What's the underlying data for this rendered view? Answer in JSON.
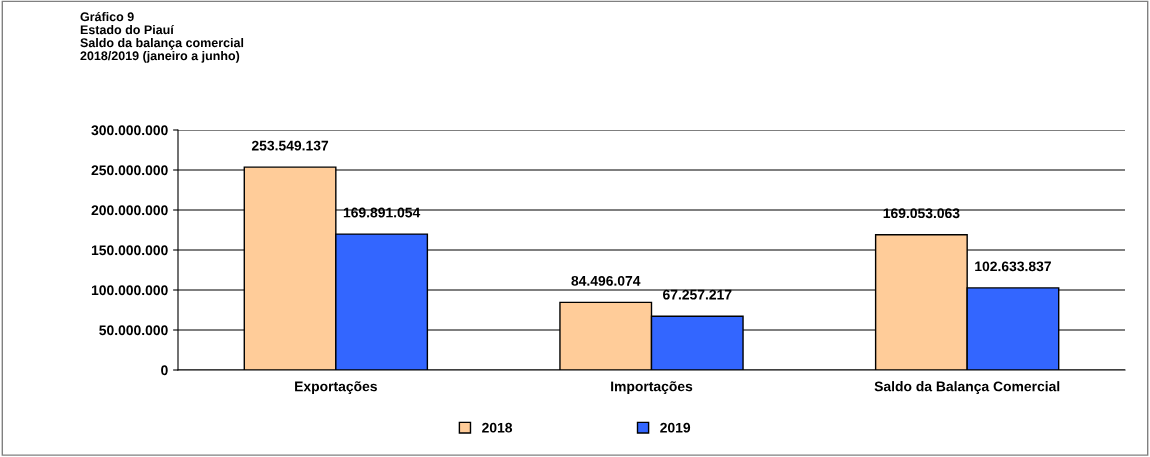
{
  "chart_data": {
    "type": "bar",
    "title": "Gráfico 9",
    "subtitle": "Estado do Piauí\nSaldo da balança comercial\n2018/2019 (janeiro a junho)",
    "categories": [
      "Exportações",
      "Importações",
      "Saldo da Balança Comercial"
    ],
    "series": [
      {
        "name": "2018",
        "color": "#ffcc99",
        "values": [
          253549137,
          84496074,
          169053063
        ],
        "value_labels": [
          "253.549.137",
          "84.496.074",
          "169.053.063"
        ]
      },
      {
        "name": "2019",
        "color": "#3366ff",
        "values": [
          169891054,
          67257217,
          102633837
        ],
        "value_labels": [
          "169.891.054",
          "67.257.217",
          "102.633.837"
        ]
      }
    ],
    "ylim": [
      0,
      300000000
    ],
    "yticks": [
      {
        "value": 0,
        "label": "0"
      },
      {
        "value": 50000000,
        "label": "50.000.000"
      },
      {
        "value": 100000000,
        "label": "100.000.000"
      },
      {
        "value": 150000000,
        "label": "150.000.000"
      },
      {
        "value": 200000000,
        "label": "200.000.000"
      },
      {
        "value": 250000000,
        "label": "250.000.000"
      },
      {
        "value": 300000000,
        "label": "300.000.000"
      }
    ],
    "grid": "y",
    "legend": "bottom"
  }
}
